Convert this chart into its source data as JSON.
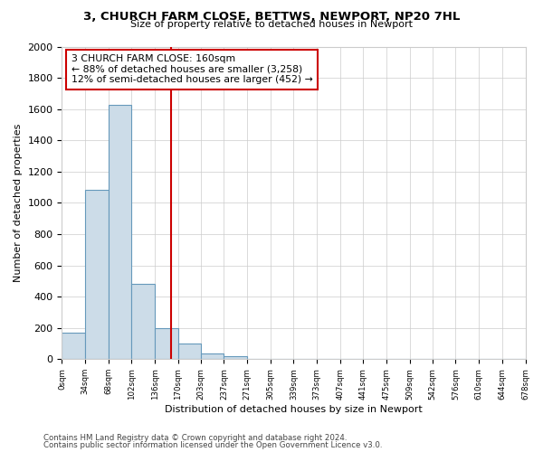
{
  "title": "3, CHURCH FARM CLOSE, BETTWS, NEWPORT, NP20 7HL",
  "subtitle": "Size of property relative to detached houses in Newport",
  "xlabel": "Distribution of detached houses by size in Newport",
  "ylabel": "Number of detached properties",
  "bar_edges": [
    0,
    34,
    68,
    102,
    136,
    170,
    203,
    237,
    271,
    305,
    339,
    373,
    407,
    441,
    475,
    509,
    542,
    576,
    610,
    644,
    678
  ],
  "bar_heights": [
    170,
    1085,
    1625,
    480,
    200,
    100,
    35,
    20,
    0,
    0,
    0,
    0,
    0,
    0,
    0,
    0,
    0,
    0,
    0,
    0
  ],
  "bar_color": "#ccdce8",
  "bar_edge_color": "#6699bb",
  "vline_x": 160,
  "vline_color": "#cc0000",
  "ylim": [
    0,
    2000
  ],
  "annotation_text_line1": "3 CHURCH FARM CLOSE: 160sqm",
  "annotation_text_line2": "← 88% of detached houses are smaller (3,258)",
  "annotation_text_line3": "12% of semi-detached houses are larger (452) →",
  "footer_line1": "Contains HM Land Registry data © Crown copyright and database right 2024.",
  "footer_line2": "Contains public sector information licensed under the Open Government Licence v3.0.",
  "tick_labels": [
    "0sqm",
    "34sqm",
    "68sqm",
    "102sqm",
    "136sqm",
    "170sqm",
    "203sqm",
    "237sqm",
    "271sqm",
    "305sqm",
    "339sqm",
    "373sqm",
    "407sqm",
    "441sqm",
    "475sqm",
    "509sqm",
    "542sqm",
    "576sqm",
    "610sqm",
    "644sqm",
    "678sqm"
  ],
  "background_color": "#ffffff",
  "grid_color": "#cccccc",
  "yticks": [
    0,
    200,
    400,
    600,
    800,
    1000,
    1200,
    1400,
    1600,
    1800,
    2000
  ]
}
